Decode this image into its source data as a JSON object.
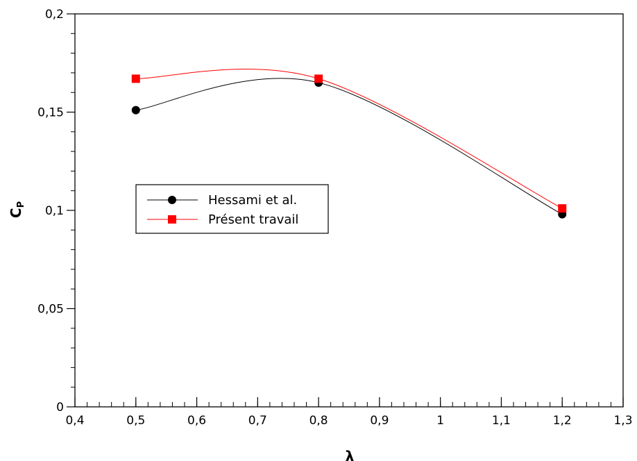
{
  "chart_data": {
    "type": "line",
    "xlabel": "λ",
    "ylabel": "C",
    "ylabel_subscript": "P",
    "xlim": [
      0.4,
      1.3
    ],
    "ylim": [
      0,
      0.2
    ],
    "x_ticks": [
      {
        "value": 0.4,
        "label": "0,4"
      },
      {
        "value": 0.5,
        "label": "0,5"
      },
      {
        "value": 0.6,
        "label": "0,6"
      },
      {
        "value": 0.7,
        "label": "0,7"
      },
      {
        "value": 0.8,
        "label": "0,8"
      },
      {
        "value": 0.9,
        "label": "0,9"
      },
      {
        "value": 1.0,
        "label": "1"
      },
      {
        "value": 1.1,
        "label": "1,1"
      },
      {
        "value": 1.2,
        "label": "1,2"
      },
      {
        "value": 1.3,
        "label": "1,3"
      }
    ],
    "y_ticks": [
      {
        "value": 0,
        "label": "0"
      },
      {
        "value": 0.05,
        "label": "0,05"
      },
      {
        "value": 0.1,
        "label": "0,1"
      },
      {
        "value": 0.15,
        "label": "0,15"
      },
      {
        "value": 0.2,
        "label": "0,2"
      }
    ],
    "grid": false,
    "legend_position": "center-left",
    "series": [
      {
        "name": "Hessami et al.",
        "x": [
          0.5,
          0.8,
          1.2
        ],
        "y": [
          0.151,
          0.165,
          0.098
        ],
        "color": "#000000",
        "marker": "circle"
      },
      {
        "name": "Présent travail",
        "x": [
          0.5,
          0.8,
          1.2
        ],
        "y": [
          0.167,
          0.167,
          0.101
        ],
        "color": "#ff0000",
        "marker": "square"
      }
    ]
  }
}
